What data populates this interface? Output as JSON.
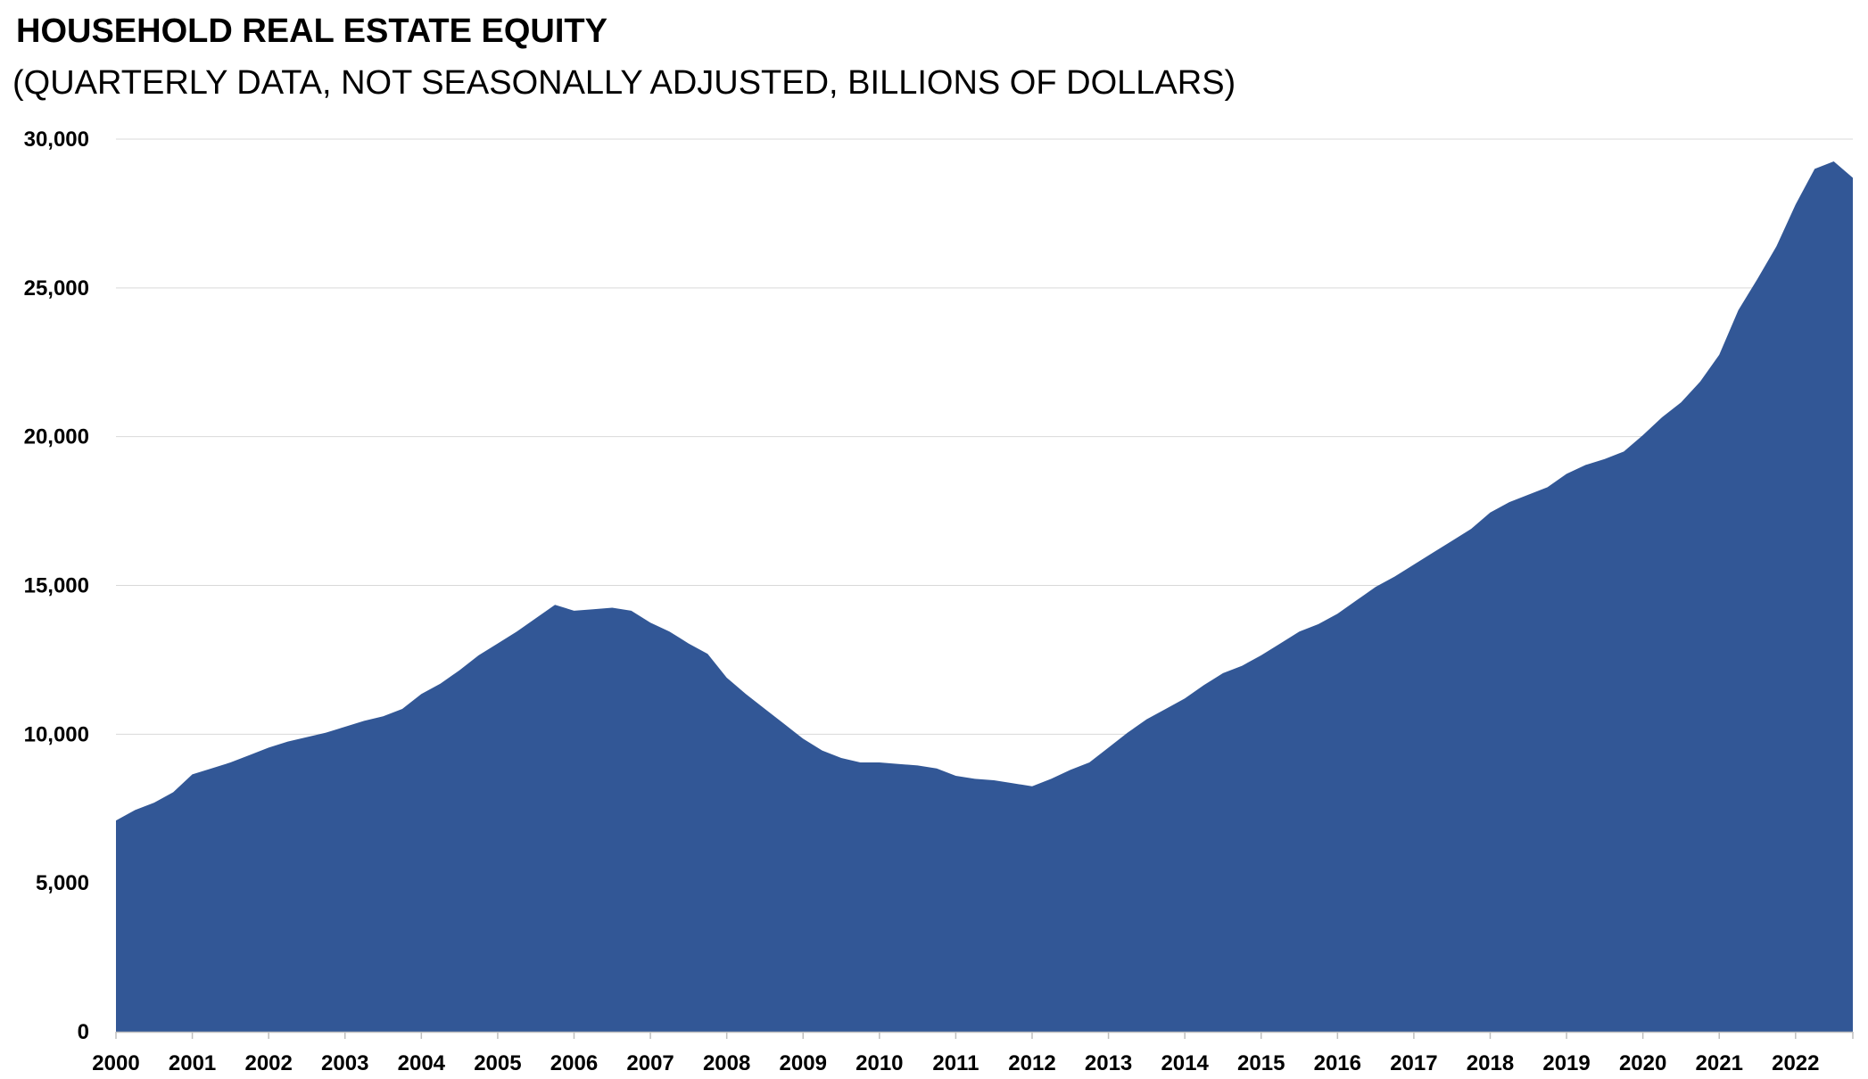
{
  "chart_data": {
    "type": "area",
    "title": "HOUSEHOLD REAL ESTATE EQUITY",
    "subtitle": "(QUARTERLY DATA, NOT SEASONALLY ADJUSTED, BILLIONS OF DOLLARS)",
    "xlabel": "",
    "ylabel": "",
    "ylim": [
      0,
      30000
    ],
    "yticks": [
      0,
      5000,
      10000,
      15000,
      20000,
      25000,
      30000
    ],
    "ytick_labels": [
      "0",
      "5,000",
      "10,000",
      "15,000",
      "20,000",
      "25,000",
      "30,000"
    ],
    "xtick_labels": [
      "2000",
      "2001",
      "2002",
      "2003",
      "2004",
      "2005",
      "2006",
      "2007",
      "2008",
      "2009",
      "2010",
      "2011",
      "2012",
      "2013",
      "2014",
      "2015",
      "2016",
      "2017",
      "2018",
      "2019",
      "2020",
      "2021",
      "2022"
    ],
    "grid": true,
    "color": "#325796",
    "start_year": 2000,
    "frequency": "quarterly",
    "series": [
      {
        "name": "Household Real Estate Equity",
        "values": [
          7100,
          7450,
          7700,
          8050,
          8650,
          8850,
          9050,
          9300,
          9550,
          9750,
          9900,
          10050,
          10250,
          10450,
          10600,
          10850,
          11350,
          11700,
          12150,
          12650,
          13050,
          13450,
          13900,
          14350,
          14150,
          14200,
          14250,
          14150,
          13750,
          13450,
          13050,
          12700,
          11900,
          11350,
          10850,
          10350,
          9850,
          9450,
          9200,
          9050,
          9050,
          9000,
          8950,
          8850,
          8600,
          8500,
          8450,
          8350,
          8250,
          8500,
          8800,
          9050,
          9550,
          10050,
          10500,
          10850,
          11200,
          11650,
          12050,
          12300,
          12650,
          13050,
          13450,
          13700,
          14050,
          14500,
          14950,
          15300,
          15700,
          16100,
          16500,
          16900,
          17450,
          17800,
          18050,
          18300,
          18750,
          19050,
          19250,
          19500,
          20050,
          20650,
          21150,
          21850,
          22750,
          24250,
          25300,
          26400,
          27800,
          29000,
          29250,
          28700
        ]
      }
    ]
  }
}
